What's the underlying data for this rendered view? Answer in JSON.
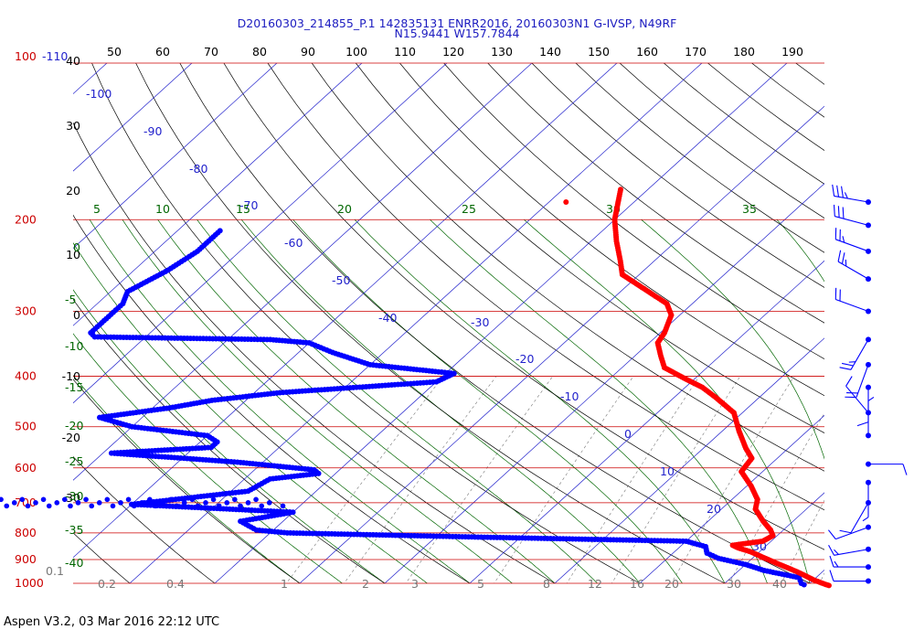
{
  "header": {
    "line1": "D20160303_214855_P.1 142835131 ENRR2016, 20160303N1 G-IVSP, N49RF",
    "line2": "N15.9441 W157.7844"
  },
  "footer": "Aspen V3.2, 03 Mar 2016  22:12 UTC",
  "colors": {
    "isobar": "#cc0000",
    "isotherm": "#2222cc",
    "dry_adiabat": "#000000",
    "moist_adiabat": "#006600",
    "mixing_ratio": "#777777",
    "temperature": "#ff0000",
    "dewpoint": "#0000ff"
  },
  "chart_data": {
    "type": "skew-t",
    "pressure_labels": [
      "100",
      "200",
      "300",
      "400",
      "500",
      "600",
      "700",
      "800",
      "900",
      "1000"
    ],
    "left_top_label": "-110",
    "height_labels": [
      "40",
      "30",
      "20",
      "10",
      "0",
      "-10",
      "-20",
      "-30"
    ],
    "theta_labels": [
      "50",
      "60",
      "70",
      "80",
      "90",
      "100",
      "110",
      "120",
      "130",
      "140",
      "150",
      "160",
      "170",
      "180",
      "190"
    ],
    "isotherm_labels": [
      "-100",
      "-90",
      "-80",
      "-70",
      "-60",
      "-50",
      "-40",
      "-30",
      "-20",
      "-10",
      "0",
      "10",
      "20",
      "30"
    ],
    "moist_labels_top": [
      "5",
      "10",
      "15",
      "20",
      "25",
      "30",
      "35"
    ],
    "moist_labels_left": [
      "0",
      "-5",
      "-10",
      "-15",
      "-20",
      "-25",
      "-30",
      "-35",
      "-40"
    ],
    "mixing_labels": [
      "0.1",
      "0.2",
      "0.4",
      "1",
      "2",
      "3",
      "5",
      "8",
      "12",
      "16",
      "20",
      "30",
      "40"
    ],
    "temperature_profile": [
      {
        "p": 175,
        "t": -53.2
      },
      {
        "p": 200,
        "t": -50
      },
      {
        "p": 220,
        "t": -47
      },
      {
        "p": 240,
        "t": -44
      },
      {
        "p": 255,
        "t": -42
      },
      {
        "p": 270,
        "t": -38
      },
      {
        "p": 290,
        "t": -33
      },
      {
        "p": 305,
        "t": -31
      },
      {
        "p": 330,
        "t": -29.5
      },
      {
        "p": 345,
        "t": -29
      },
      {
        "p": 365,
        "t": -27
      },
      {
        "p": 385,
        "t": -25
      },
      {
        "p": 405,
        "t": -21
      },
      {
        "p": 420,
        "t": -18
      },
      {
        "p": 440,
        "t": -15
      },
      {
        "p": 470,
        "t": -11
      },
      {
        "p": 510,
        "t": -8
      },
      {
        "p": 550,
        "t": -5
      },
      {
        "p": 575,
        "t": -3
      },
      {
        "p": 610,
        "t": -2.5
      },
      {
        "p": 650,
        "t": 0.5
      },
      {
        "p": 690,
        "t": 3
      },
      {
        "p": 720,
        "t": 4
      },
      {
        "p": 760,
        "t": 6.5
      },
      {
        "p": 790,
        "t": 8.5
      },
      {
        "p": 810,
        "t": 9.5
      },
      {
        "p": 830,
        "t": 9
      },
      {
        "p": 845,
        "t": 6
      },
      {
        "p": 855,
        "t": 7
      },
      {
        "p": 870,
        "t": 9
      },
      {
        "p": 890,
        "t": 11
      },
      {
        "p": 920,
        "t": 14
      },
      {
        "p": 950,
        "t": 17
      },
      {
        "p": 985,
        "t": 20
      },
      {
        "p": 1005,
        "t": 22
      },
      {
        "p": 1012,
        "t": 22.8
      }
    ],
    "dewpoint_profile": [
      {
        "p": 210,
        "dp": -95
      },
      {
        "p": 230,
        "dp": -95
      },
      {
        "p": 250,
        "dp": -96
      },
      {
        "p": 275,
        "dp": -98
      },
      {
        "p": 290,
        "dp": -97
      },
      {
        "p": 310,
        "dp": -97
      },
      {
        "p": 330,
        "dp": -97
      },
      {
        "p": 336,
        "dp": -96
      },
      {
        "p": 340,
        "dp": -75
      },
      {
        "p": 345,
        "dp": -70
      },
      {
        "p": 360,
        "dp": -66
      },
      {
        "p": 380,
        "dp": -60
      },
      {
        "p": 395,
        "dp": -49
      },
      {
        "p": 410,
        "dp": -50
      },
      {
        "p": 430,
        "dp": -67
      },
      {
        "p": 445,
        "dp": -74
      },
      {
        "p": 460,
        "dp": -78
      },
      {
        "p": 480,
        "dp": -85
      },
      {
        "p": 500,
        "dp": -80
      },
      {
        "p": 520,
        "dp": -70
      },
      {
        "p": 535,
        "dp": -68
      },
      {
        "p": 548,
        "dp": -68
      },
      {
        "p": 562,
        "dp": -79
      },
      {
        "p": 585,
        "dp": -63
      },
      {
        "p": 605,
        "dp": -53
      },
      {
        "p": 615,
        "dp": -52
      },
      {
        "p": 630,
        "dp": -57
      },
      {
        "p": 665,
        "dp": -58
      },
      {
        "p": 705,
        "dp": -70
      },
      {
        "p": 730,
        "dp": -50
      },
      {
        "p": 760,
        "dp": -55
      },
      {
        "p": 790,
        "dp": -52
      },
      {
        "p": 800,
        "dp": -48
      },
      {
        "p": 815,
        "dp": -25
      },
      {
        "p": 830,
        "dp": 0
      },
      {
        "p": 850,
        "dp": 3
      },
      {
        "p": 875,
        "dp": 4
      },
      {
        "p": 895,
        "dp": 6
      },
      {
        "p": 920,
        "dp": 10
      },
      {
        "p": 945,
        "dp": 13
      },
      {
        "p": 975,
        "dp": 18
      },
      {
        "p": 1000,
        "dp": 19
      },
      {
        "p": 1012,
        "dp": 20
      }
    ],
    "stray_points": [
      {
        "p": 185,
        "t": -58
      }
    ],
    "dewpoint_streak_rows": [
      {
        "p": 690,
        "from": -96,
        "to": -56
      },
      {
        "p": 700,
        "from": -94,
        "to": -52
      },
      {
        "p": 710,
        "from": -92,
        "to": -50
      }
    ],
    "wind_barbs": [
      {
        "p": 185,
        "dir": 280,
        "spd": 35
      },
      {
        "p": 205,
        "dir": 285,
        "spd": 30
      },
      {
        "p": 230,
        "dir": 290,
        "spd": 25
      },
      {
        "p": 260,
        "dir": 300,
        "spd": 25
      },
      {
        "p": 300,
        "dir": 290,
        "spd": 20
      },
      {
        "p": 340,
        "dir": 210,
        "spd": 25
      },
      {
        "p": 380,
        "dir": 200,
        "spd": 20
      },
      {
        "p": 420,
        "dir": 180,
        "spd": 10
      },
      {
        "p": 470,
        "dir": 320,
        "spd": 10
      },
      {
        "p": 520,
        "dir": 0,
        "spd": 5
      },
      {
        "p": 590,
        "dir": 90,
        "spd": 10
      },
      {
        "p": 640,
        "dir": 180,
        "spd": 5
      },
      {
        "p": 700,
        "dir": 210,
        "spd": 10
      },
      {
        "p": 780,
        "dir": 250,
        "spd": 10
      },
      {
        "p": 860,
        "dir": 260,
        "spd": 15
      },
      {
        "p": 930,
        "dir": 270,
        "spd": 15
      },
      {
        "p": 990,
        "dir": 270,
        "spd": 10
      }
    ]
  }
}
